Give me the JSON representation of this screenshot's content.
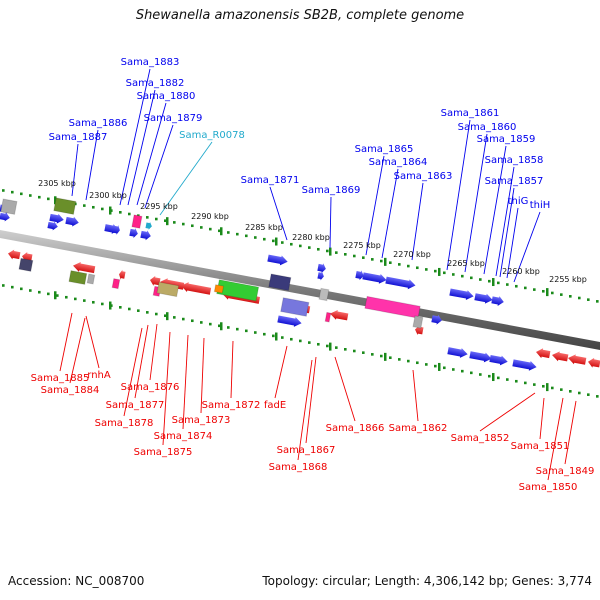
{
  "title": "Shewanella amazonensis SB2B, complete genome",
  "footer": {
    "accession": "Accession: NC_008700",
    "summary": "Topology: circular; Length: 4,306,142 bp; Genes: 3,774"
  },
  "colors": {
    "forward": "#0000ee",
    "reverse": "#ee0000",
    "rna": "#22aacc",
    "backbone": "#888888",
    "tick": "#1a8a1a"
  },
  "kbp_marks": [
    "2305 kbp",
    "2300 kbp",
    "2295 kbp",
    "2290 kbp",
    "2285 kbp",
    "2280 kbp",
    "2275 kbp",
    "2270 kbp",
    "2265 kbp",
    "2260 kbp",
    "2255 kbp"
  ],
  "top_labels": [
    "Sama_1883",
    "Sama_1882",
    "Sama_1880",
    "Sama_1879",
    "Sama_1886",
    "Sama_1887",
    "Sama_R0078",
    "Sama_1871",
    "Sama_1869",
    "Sama_1865",
    "Sama_1864",
    "Sama_1863",
    "Sama_1861",
    "Sama_1860",
    "Sama_1859",
    "Sama_1858",
    "Sama_1857",
    "thiG",
    "thiH"
  ],
  "bottom_labels": [
    "Sama_1885",
    "rnhA",
    "Sama_1884",
    "Sama_1876",
    "Sama_1877",
    "Sama_1878",
    "Sama_1872",
    "Sama_1873",
    "Sama_1874",
    "Sama_1875",
    "fadE",
    "Sama_1866",
    "Sama_1867",
    "Sama_1868",
    "Sama_1862",
    "Sama_1852",
    "Sama_1851",
    "Sama_1849",
    "Sama_1850"
  ]
}
